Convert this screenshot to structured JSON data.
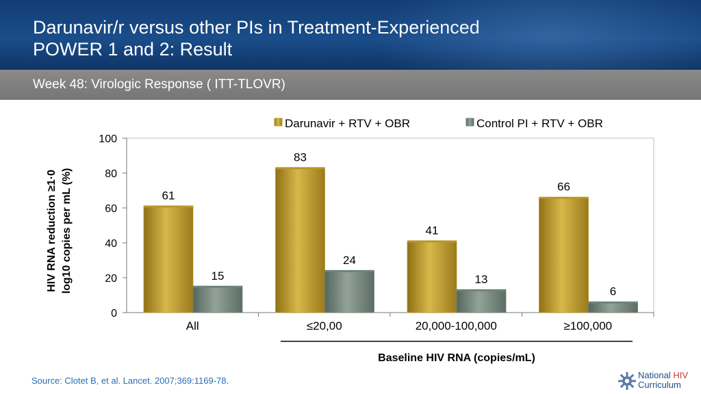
{
  "header": {
    "title_line1": "Darunavir/r versus other PIs in Treatment-Experienced",
    "title_line2": "POWER 1 and 2: Result",
    "subtitle": "Week 48: Virologic Response ( ITT-TLOVR)"
  },
  "chart_data": {
    "type": "bar",
    "categories": [
      "All",
      "≤20,00",
      "20,000-100,000",
      "≥100,000"
    ],
    "series": [
      {
        "name": "Darunavir + RTV + OBR",
        "values": [
          61,
          83,
          41,
          66
        ],
        "color": "#b8962a"
      },
      {
        "name": "Control PI + RTV + OBR",
        "values": [
          15,
          24,
          13,
          6
        ],
        "color": "#6f8278"
      }
    ],
    "ylabel_line1": "HIV RNA reduction ≥1·0",
    "ylabel_line2": "log10 copies per mL (%)",
    "xlabel": "Baseline HIV RNA (copies/mL)",
    "ylim": [
      0,
      100
    ],
    "yticks": [
      0,
      20,
      40,
      60,
      80,
      100
    ],
    "legend_position": "top-right",
    "grid": false
  },
  "footer": {
    "source": "Source: Clotet B, et al. Lancet. 2007;369:1169-78.",
    "logo_line1_a": "National ",
    "logo_line1_b": "HIV",
    "logo_line2": "Curriculum",
    "logo_icon": "gear-icon"
  }
}
